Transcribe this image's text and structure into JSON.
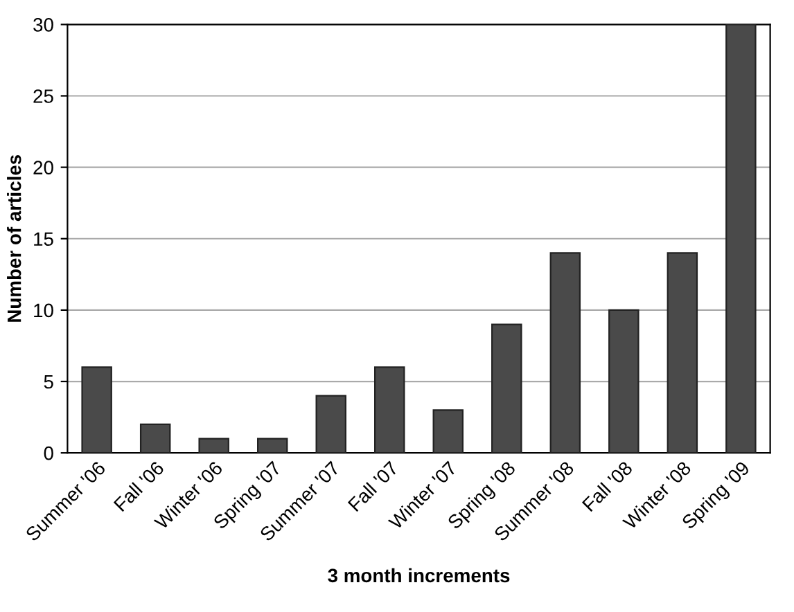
{
  "chart_data": {
    "type": "bar",
    "xlabel": "3 month increments",
    "ylabel": "Number of articles",
    "categories": [
      "Summer '06",
      "Fall '06",
      "Winter '06",
      "Spring '07",
      "Summer '07",
      "Fall '07",
      "Winter '07",
      "Spring '08",
      "Summer '08",
      "Fall '08",
      "Winter '08",
      "Spring '09"
    ],
    "values": [
      6,
      2,
      1,
      1,
      4,
      6,
      3,
      9,
      14,
      10,
      14,
      30
    ],
    "color": "#4a4a4a",
    "ylim": [
      0,
      30
    ],
    "yticks": [
      0,
      5,
      10,
      15,
      20,
      25,
      30
    ],
    "grid": "y"
  }
}
